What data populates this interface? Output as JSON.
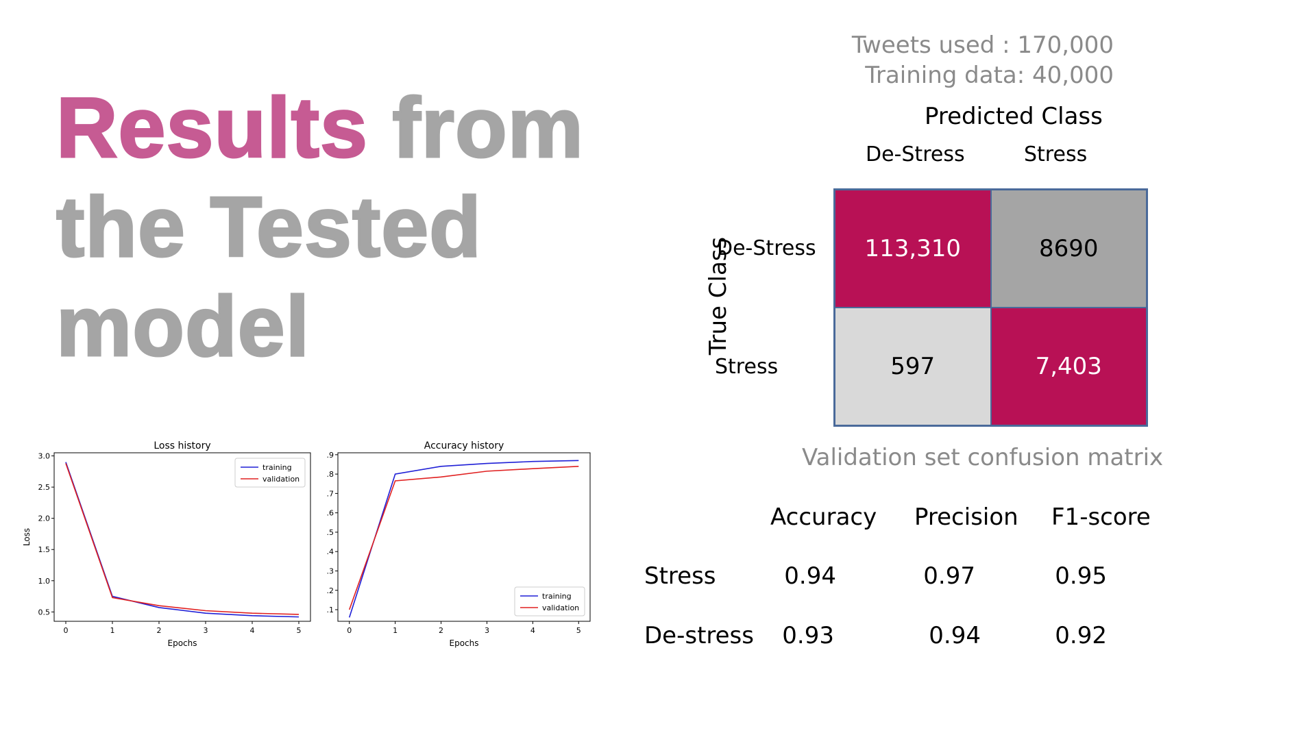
{
  "slide": {
    "title_highlight": "Results",
    "title_rest": " from the Tested model",
    "tweets_used": "Tweets used : 170,000",
    "training_data": "Training data: 40,000"
  },
  "confusion_matrix": {
    "predicted_header": "Predicted Class",
    "true_header": "True Class",
    "col_labels": [
      "De-Stress",
      "Stress"
    ],
    "row_labels": [
      "De-Stress",
      "Stress"
    ],
    "cells": [
      [
        "113,310",
        "8690"
      ],
      [
        "597",
        "7,403"
      ]
    ],
    "caption": "Validation set confusion matrix",
    "colors": {
      "diag": "#b81155",
      "off_dark": "#a5a5a5",
      "off_light": "#d9d9d9"
    }
  },
  "metrics": {
    "headers": [
      "Accuracy",
      "Precision",
      "F1-score"
    ],
    "rows": [
      {
        "label": "Stress",
        "values": [
          "0.94",
          "0.97",
          "0.95"
        ]
      },
      {
        "label": "De-stress",
        "values": [
          "0.93",
          "0.94",
          "0.92"
        ]
      }
    ]
  },
  "chart_data": [
    {
      "type": "line",
      "title": "Loss history",
      "xlabel": "Epochs",
      "ylabel": "Loss",
      "x": [
        0,
        1,
        2,
        3,
        4,
        5
      ],
      "xlim": [
        -0.25,
        5.25
      ],
      "ylim": [
        0.35,
        3.05
      ],
      "yticks": [
        0.5,
        1.0,
        1.5,
        2.0,
        2.5,
        3.0
      ],
      "ytick_labels": [
        "0.5",
        "1.0",
        "1.5",
        "2.0",
        "2.5",
        "3.0"
      ],
      "legend_position": "top-right",
      "series": [
        {
          "name": "training",
          "color": "#1f1fd6",
          "values": [
            2.9,
            0.75,
            0.57,
            0.48,
            0.44,
            0.42
          ]
        },
        {
          "name": "validation",
          "color": "#e02020",
          "values": [
            2.88,
            0.73,
            0.6,
            0.52,
            0.48,
            0.46
          ]
        }
      ]
    },
    {
      "type": "line",
      "title": "Accuracy history",
      "xlabel": "Epochs",
      "ylabel": "",
      "x": [
        0,
        1,
        2,
        3,
        4,
        5
      ],
      "xlim": [
        -0.25,
        5.25
      ],
      "ylim": [
        0.04,
        0.91
      ],
      "yticks": [
        0.1,
        0.2,
        0.3,
        0.4,
        0.5,
        0.6,
        0.7,
        0.8,
        0.9
      ],
      "ytick_labels": [
        ".1",
        ".2",
        ".3",
        ".4",
        ".5",
        ".6",
        ".7",
        ".8",
        ".9"
      ],
      "legend_position": "bottom-right",
      "series": [
        {
          "name": "training",
          "color": "#1f1fd6",
          "values": [
            0.06,
            0.8,
            0.84,
            0.855,
            0.865,
            0.87
          ]
        },
        {
          "name": "validation",
          "color": "#e02020",
          "values": [
            0.1,
            0.765,
            0.785,
            0.815,
            0.828,
            0.84
          ]
        }
      ]
    }
  ]
}
